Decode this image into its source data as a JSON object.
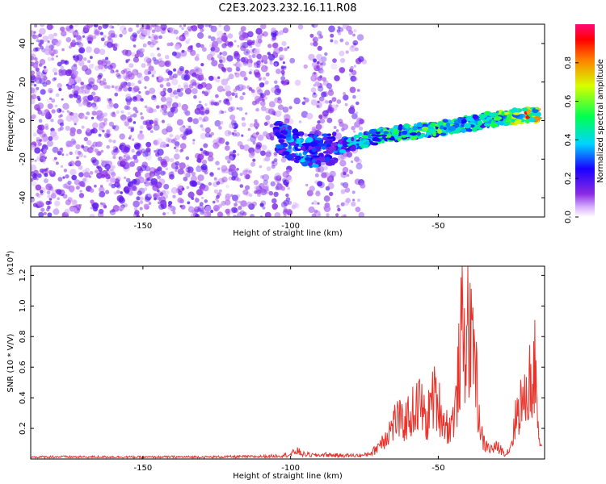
{
  "title": "C2E3.2023.232.16.11.R08",
  "colors": {
    "snr_line": "#e8322a",
    "spectrogram_noise": "#8a2be2",
    "axis": "#000000",
    "background": "#ffffff"
  },
  "chart_data": [
    {
      "type": "heatmap",
      "title": "C2E3.2023.232.16.11.R08",
      "xlabel": "Height of straight line (km)",
      "ylabel": "Frequency (Hz)",
      "xlim": [
        -188,
        -14
      ],
      "ylim": [
        -50,
        50
      ],
      "xticks": [
        -150,
        -100,
        -50
      ],
      "xtick_labels": [
        "-150",
        "-100",
        "-50"
      ],
      "yticks": [
        40,
        20,
        0,
        -20,
        -40
      ],
      "ytick_labels": [
        "40",
        "20",
        "0",
        "-20",
        "-40"
      ],
      "grid": false,
      "colorbar": {
        "label": "Normalized spectral amplitude",
        "range": [
          0.0,
          1.0
        ],
        "ticks": [
          0.0,
          0.2,
          0.4,
          0.6,
          0.8
        ],
        "tick_labels": [
          "0.0",
          "0.2",
          "0.4",
          "0.6",
          "0.8"
        ],
        "colormap": "rainbow (white-violet-blue-cyan-green-yellow-red-magenta)"
      },
      "signal_track": {
        "x": [
          -105,
          -100,
          -95,
          -90,
          -85,
          -80,
          -75,
          -70,
          -65,
          -60,
          -55,
          -50,
          -45,
          -40,
          -35,
          -30,
          -25,
          -20,
          -16
        ],
        "frequency": [
          -8,
          -12,
          -15,
          -16,
          -14,
          -12,
          -10,
          -8,
          -7,
          -6,
          -5,
          -4,
          -3,
          -2,
          0,
          1,
          2,
          3,
          3
        ],
        "amplitude": [
          0.25,
          0.35,
          0.35,
          0.3,
          0.3,
          0.4,
          0.45,
          0.5,
          0.55,
          0.55,
          0.55,
          0.55,
          0.55,
          0.5,
          0.45,
          0.55,
          0.65,
          0.85,
          0.75
        ]
      },
      "noise_region": {
        "x_from": -188,
        "x_to": -75,
        "amplitude_max": 0.1
      }
    },
    {
      "type": "line",
      "xlabel": "Height of straight line (km)",
      "ylabel": "SNR (10 * V/V)",
      "y_multiplier": "(x10",
      "y_multiplier_exp": "4",
      "y_multiplier_close": ")",
      "xlim": [
        -188,
        -14
      ],
      "ylim": [
        0,
        12600
      ],
      "xticks": [
        -150,
        -100,
        -50
      ],
      "xtick_labels": [
        "-150",
        "-100",
        "-50"
      ],
      "yticks": [
        2000,
        4000,
        6000,
        8000,
        10000,
        12000
      ],
      "ytick_labels": [
        "0.2",
        "0.4",
        "0.6",
        "0.8",
        "1.0",
        "1.2"
      ],
      "grid": false,
      "series": [
        {
          "x": [
            -188,
            -180,
            -170,
            -160,
            -150,
            -140,
            -130,
            -120,
            -110,
            -105,
            -100,
            -98,
            -96,
            -92,
            -88,
            -85,
            -80,
            -75,
            -72,
            -70,
            -68,
            -66,
            -64,
            -62,
            -60,
            -58,
            -56,
            -54,
            -52,
            -50,
            -48,
            -46,
            -44,
            -43,
            -42,
            -41,
            -40,
            -39,
            -38,
            -37,
            -36,
            -35,
            -34,
            -32,
            -30,
            -28,
            -27,
            -26,
            -25,
            -24,
            -23,
            -22,
            -21,
            -20,
            -19,
            -18,
            -17,
            -16,
            -15
          ],
          "values": [
            150,
            180,
            160,
            170,
            150,
            170,
            160,
            180,
            200,
            250,
            350,
            700,
            400,
            300,
            350,
            300,
            280,
            300,
            600,
            1200,
            1800,
            2500,
            3400,
            2800,
            3500,
            4000,
            4600,
            2800,
            5200,
            4500,
            3000,
            2500,
            4200,
            7500,
            10500,
            8800,
            12600,
            8500,
            11000,
            6000,
            3000,
            1500,
            1100,
            800,
            1000,
            600,
            400,
            800,
            1500,
            3000,
            4000,
            4800,
            4200,
            5600,
            6300,
            6000,
            7900,
            2000,
            1000
          ]
        }
      ]
    }
  ]
}
